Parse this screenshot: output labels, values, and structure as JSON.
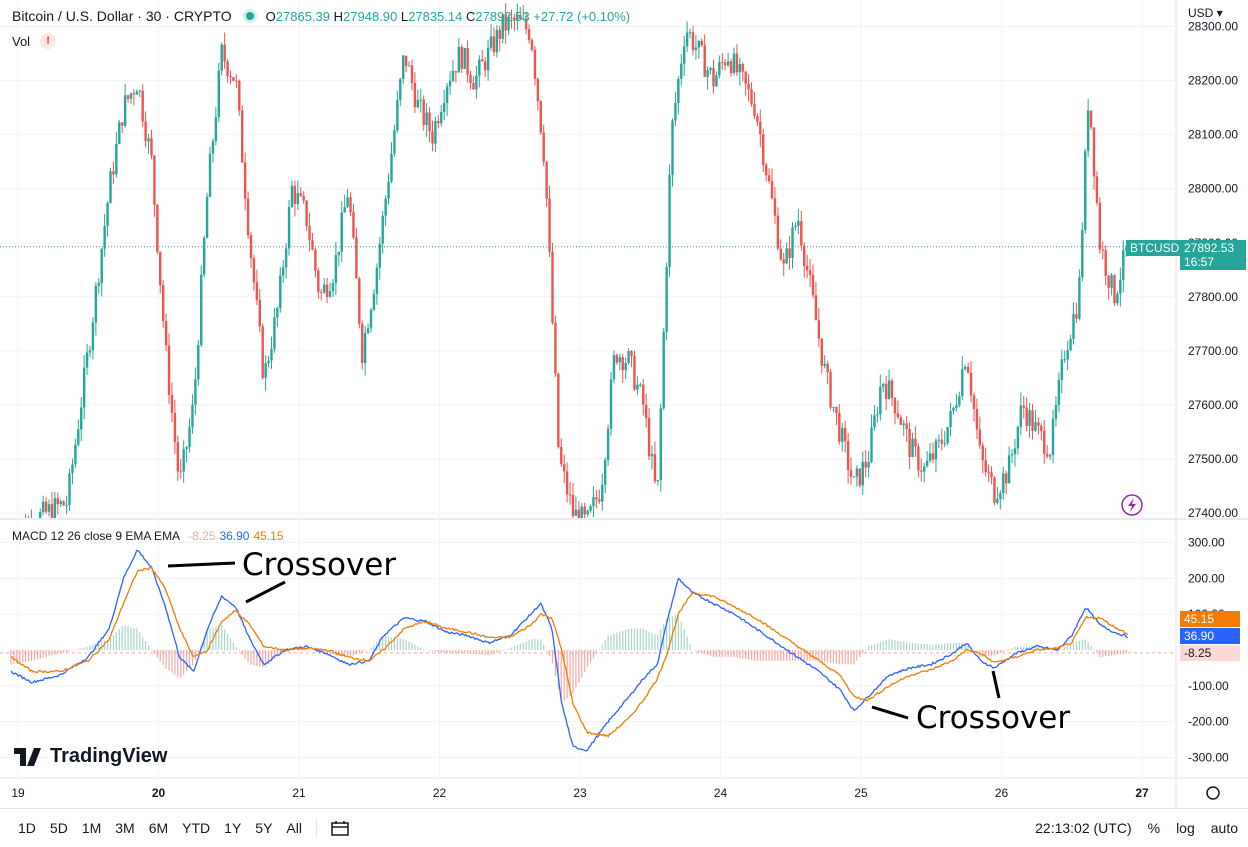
{
  "header": {
    "title": "Bitcoin / U.S. Dollar · 30 · CRYPTO",
    "o_label": "O",
    "o": "27865.39",
    "h_label": "H",
    "h": "27948.90",
    "l_label": "L",
    "l": "27835.14",
    "c_label": "C",
    "c": "27892.53",
    "change": "+27.72 (+0.10%)"
  },
  "vol_label": "Vol",
  "vol_warning": "!",
  "currency": "USD",
  "macd_header": {
    "label": "MACD 12 26 close 9 EMA EMA",
    "hist": "-8.25",
    "macd": "36.90",
    "signal": "45.15"
  },
  "last_price": {
    "symbol": "BTCUSD",
    "price": "27892.53",
    "countdown": "16:57"
  },
  "macd_values": {
    "signal": "45.15",
    "macd": "36.90",
    "hist": "-8.25"
  },
  "annotations": [
    "Crossover",
    "Crossover"
  ],
  "logo_text": "TradingView",
  "bottom": {
    "timeframes": [
      "1D",
      "5D",
      "1M",
      "3M",
      "6M",
      "YTD",
      "1Y",
      "5Y",
      "All"
    ],
    "time": "22:13:02 (UTC)",
    "percent": "%",
    "log": "log",
    "auto": "auto"
  },
  "colors": {
    "up": "#26a69a",
    "down": "#ef5350",
    "macd": "#2962ff",
    "signal": "#f57c00",
    "hist_up": "#a5d6c8",
    "hist_down": "#f7a7a3"
  },
  "chart_data": [
    {
      "type": "candlestick",
      "title": "Bitcoin / U.S. Dollar · 30 · CRYPTO",
      "x_ticks": [
        "19",
        "20",
        "21",
        "22",
        "23",
        "24",
        "25",
        "26",
        "27"
      ],
      "y_ticks": [
        "28300.00",
        "28200.00",
        "28100.00",
        "28000.00",
        "27900.00",
        "27800.00",
        "27700.00",
        "27600.00",
        "27500.00",
        "27400.00"
      ],
      "ylim": [
        27390,
        28310
      ],
      "x_range_days": [
        18.9,
        27.05
      ],
      "close_path": [
        [
          18.95,
          27360
        ],
        [
          19.2,
          27400
        ],
        [
          19.35,
          27420
        ],
        [
          19.5,
          27700
        ],
        [
          19.65,
          28000
        ],
        [
          19.75,
          28150
        ],
        [
          19.85,
          28200
        ],
        [
          19.95,
          28050
        ],
        [
          20.05,
          27700
        ],
        [
          20.15,
          27450
        ],
        [
          20.25,
          27600
        ],
        [
          20.35,
          28000
        ],
        [
          20.45,
          28250
        ],
        [
          20.55,
          28200
        ],
        [
          20.65,
          27900
        ],
        [
          20.75,
          27650
        ],
        [
          20.85,
          27780
        ],
        [
          20.95,
          28000
        ],
        [
          21.05,
          27950
        ],
        [
          21.15,
          27800
        ],
        [
          21.25,
          27850
        ],
        [
          21.35,
          28000
        ],
        [
          21.45,
          27700
        ],
        [
          21.55,
          27850
        ],
        [
          21.65,
          28050
        ],
        [
          21.75,
          28250
        ],
        [
          21.85,
          28150
        ],
        [
          21.95,
          28100
        ],
        [
          22.05,
          28200
        ],
        [
          22.15,
          28250
        ],
        [
          22.25,
          28200
        ],
        [
          22.35,
          28250
        ],
        [
          22.45,
          28300
        ],
        [
          22.55,
          28310
        ],
        [
          22.65,
          28290
        ],
        [
          22.75,
          28050
        ],
        [
          22.85,
          27500
        ],
        [
          22.95,
          27400
        ],
        [
          23.05,
          27380
        ],
        [
          23.15,
          27450
        ],
        [
          23.25,
          27700
        ],
        [
          23.35,
          27680
        ],
        [
          23.45,
          27600
        ],
        [
          23.55,
          27420
        ],
        [
          23.65,
          28100
        ],
        [
          23.75,
          28300
        ],
        [
          23.85,
          28250
        ],
        [
          23.95,
          28200
        ],
        [
          24.05,
          28250
        ],
        [
          24.15,
          28200
        ],
        [
          24.25,
          28150
        ],
        [
          24.35,
          28000
        ],
        [
          24.45,
          27850
        ],
        [
          24.55,
          27950
        ],
        [
          24.65,
          27800
        ],
        [
          24.75,
          27650
        ],
        [
          24.85,
          27550
        ],
        [
          24.95,
          27450
        ],
        [
          25.05,
          27500
        ],
        [
          25.15,
          27650
        ],
        [
          25.25,
          27600
        ],
        [
          25.35,
          27520
        ],
        [
          25.45,
          27480
        ],
        [
          25.55,
          27520
        ],
        [
          25.65,
          27580
        ],
        [
          25.75,
          27700
        ],
        [
          25.85,
          27500
        ],
        [
          25.95,
          27440
        ],
        [
          26.05,
          27480
        ],
        [
          26.15,
          27600
        ],
        [
          26.25,
          27550
        ],
        [
          26.35,
          27520
        ],
        [
          26.45,
          27700
        ],
        [
          26.55,
          27800
        ],
        [
          26.62,
          28180
        ],
        [
          26.7,
          27900
        ],
        [
          26.8,
          27800
        ],
        [
          26.9,
          27892.53
        ]
      ]
    },
    {
      "type": "line",
      "title": "MACD 12 26 close 9 EMA EMA",
      "y_ticks": [
        "300.00",
        "200.00",
        "100.00",
        "-100.00",
        "-200.00",
        "-300.00"
      ],
      "ylim": [
        -330,
        330
      ],
      "series": [
        {
          "name": "MACD",
          "values": [
            [
              18.95,
              -60
            ],
            [
              19.1,
              -90
            ],
            [
              19.3,
              -70
            ],
            [
              19.5,
              -20
            ],
            [
              19.65,
              60
            ],
            [
              19.75,
              200
            ],
            [
              19.85,
              280
            ],
            [
              19.95,
              230
            ],
            [
              20.05,
              120
            ],
            [
              20.15,
              -20
            ],
            [
              20.25,
              -60
            ],
            [
              20.35,
              60
            ],
            [
              20.45,
              150
            ],
            [
              20.55,
              120
            ],
            [
              20.65,
              30
            ],
            [
              20.75,
              -40
            ],
            [
              20.9,
              0
            ],
            [
              21.05,
              10
            ],
            [
              21.2,
              -10
            ],
            [
              21.35,
              -40
            ],
            [
              21.5,
              -30
            ],
            [
              21.6,
              40
            ],
            [
              21.75,
              90
            ],
            [
              21.9,
              80
            ],
            [
              22.05,
              50
            ],
            [
              22.2,
              40
            ],
            [
              22.35,
              20
            ],
            [
              22.5,
              40
            ],
            [
              22.65,
              100
            ],
            [
              22.72,
              130
            ],
            [
              22.8,
              60
            ],
            [
              22.87,
              -150
            ],
            [
              22.95,
              -270
            ],
            [
              23.05,
              -280
            ],
            [
              23.2,
              -200
            ],
            [
              23.35,
              -130
            ],
            [
              23.45,
              -80
            ],
            [
              23.55,
              -40
            ],
            [
              23.62,
              80
            ],
            [
              23.7,
              200
            ],
            [
              23.8,
              160
            ],
            [
              23.95,
              130
            ],
            [
              24.1,
              100
            ],
            [
              24.25,
              60
            ],
            [
              24.4,
              20
            ],
            [
              24.55,
              -20
            ],
            [
              24.7,
              -60
            ],
            [
              24.85,
              -110
            ],
            [
              24.95,
              -170
            ],
            [
              25.05,
              -130
            ],
            [
              25.2,
              -70
            ],
            [
              25.35,
              -50
            ],
            [
              25.5,
              -40
            ],
            [
              25.65,
              -10
            ],
            [
              25.75,
              20
            ],
            [
              25.85,
              -30
            ],
            [
              25.95,
              -50
            ],
            [
              26.1,
              -10
            ],
            [
              26.25,
              10
            ],
            [
              26.4,
              0
            ],
            [
              26.5,
              40
            ],
            [
              26.6,
              120
            ],
            [
              26.7,
              70
            ],
            [
              26.8,
              50
            ],
            [
              26.9,
              36.9
            ]
          ]
        },
        {
          "name": "Signal",
          "values": [
            [
              18.95,
              -20
            ],
            [
              19.1,
              -60
            ],
            [
              19.3,
              -60
            ],
            [
              19.5,
              -30
            ],
            [
              19.65,
              30
            ],
            [
              19.75,
              130
            ],
            [
              19.85,
              220
            ],
            [
              19.95,
              230
            ],
            [
              20.05,
              170
            ],
            [
              20.15,
              60
            ],
            [
              20.25,
              -20
            ],
            [
              20.35,
              0
            ],
            [
              20.45,
              80
            ],
            [
              20.55,
              110
            ],
            [
              20.65,
              70
            ],
            [
              20.75,
              10
            ],
            [
              20.9,
              0
            ],
            [
              21.05,
              5
            ],
            [
              21.2,
              0
            ],
            [
              21.35,
              -20
            ],
            [
              21.5,
              -30
            ],
            [
              21.6,
              0
            ],
            [
              21.75,
              60
            ],
            [
              21.9,
              80
            ],
            [
              22.05,
              60
            ],
            [
              22.2,
              50
            ],
            [
              22.35,
              35
            ],
            [
              22.5,
              35
            ],
            [
              22.65,
              70
            ],
            [
              22.72,
              100
            ],
            [
              22.8,
              90
            ],
            [
              22.87,
              0
            ],
            [
              22.95,
              -150
            ],
            [
              23.05,
              -230
            ],
            [
              23.2,
              -240
            ],
            [
              23.35,
              -190
            ],
            [
              23.45,
              -140
            ],
            [
              23.55,
              -80
            ],
            [
              23.62,
              -10
            ],
            [
              23.7,
              100
            ],
            [
              23.8,
              160
            ],
            [
              23.95,
              150
            ],
            [
              24.1,
              120
            ],
            [
              24.25,
              90
            ],
            [
              24.4,
              50
            ],
            [
              24.55,
              10
            ],
            [
              24.7,
              -30
            ],
            [
              24.85,
              -70
            ],
            [
              24.95,
              -130
            ],
            [
              25.05,
              -140
            ],
            [
              25.2,
              -100
            ],
            [
              25.35,
              -70
            ],
            [
              25.5,
              -55
            ],
            [
              25.65,
              -30
            ],
            [
              25.75,
              0
            ],
            [
              25.85,
              -10
            ],
            [
              25.95,
              -35
            ],
            [
              26.1,
              -20
            ],
            [
              26.25,
              0
            ],
            [
              26.4,
              5
            ],
            [
              26.5,
              20
            ],
            [
              26.6,
              90
            ],
            [
              26.7,
              90
            ],
            [
              26.8,
              65
            ],
            [
              26.9,
              45.15
            ]
          ]
        }
      ]
    }
  ]
}
